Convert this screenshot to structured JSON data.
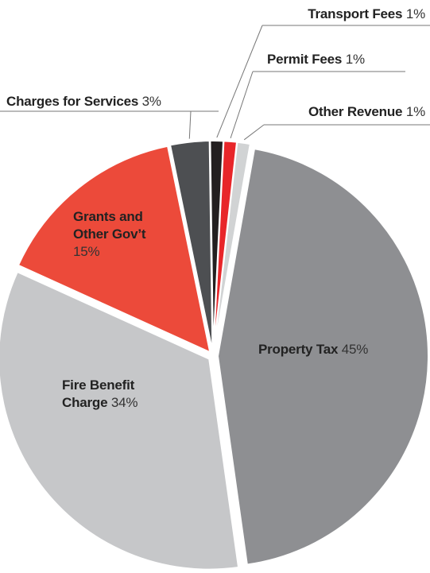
{
  "chart_data": {
    "type": "pie",
    "categories": [
      "Property Tax",
      "Fire Benefit Charge",
      "Grants and Other Gov’t",
      "Charges for Services",
      "Transport Fees",
      "Permit Fees",
      "Other Revenue"
    ],
    "values": [
      45,
      34,
      15,
      3,
      1,
      1,
      1
    ],
    "value_labels": [
      "45%",
      "34%",
      "15%",
      "3%",
      "1%",
      "1%",
      "1%"
    ],
    "colors": [
      "#8e8f92",
      "#c6c7c9",
      "#ec4a3a",
      "#4d4f52",
      "#231f20",
      "#e8262a",
      "#d1d3d4"
    ]
  }
}
